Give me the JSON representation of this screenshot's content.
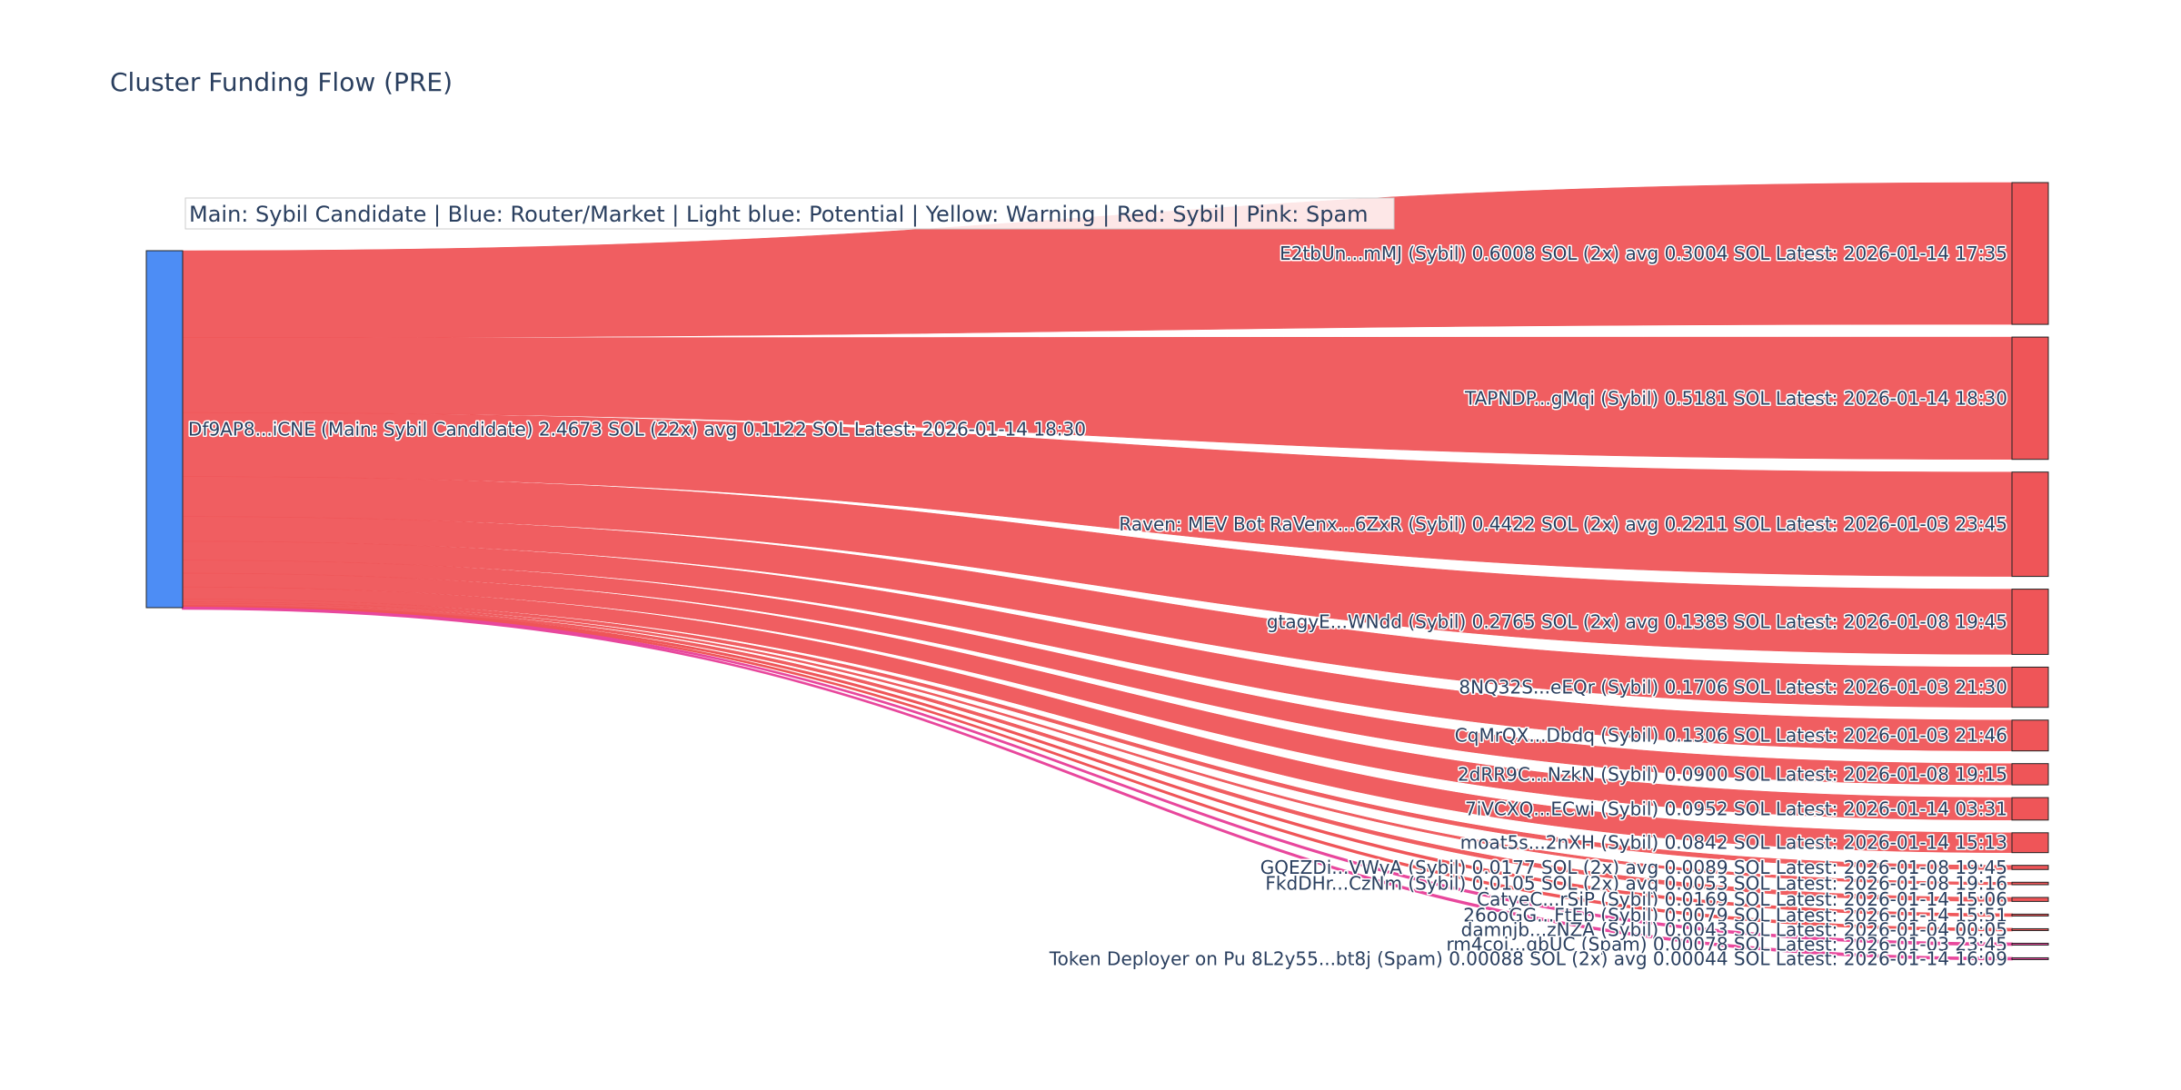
{
  "chart_data": {
    "type": "sankey",
    "title": "Cluster Funding Flow (PRE)",
    "legend_note": "Main: Sybil Candidate  |  Blue: Router/Market | Light blue: Potential | Yellow: Warning | Red: Sybil | Pink: Spam",
    "colors": {
      "main": "#4d8df5",
      "sybil": "#ef5558",
      "spam": "#e8479c",
      "node_outline": "#222222",
      "text": "#2a3f5f"
    },
    "source": {
      "label": "Df9AP8...iCNE (Main: Sybil Candidate) 2.4673 SOL (22x) avg 0.1122 SOL Latest: 2026-01-14 18:30",
      "total_sol": 2.4673,
      "count": 22
    },
    "targets": [
      {
        "label": "E2tbUn...mMJ (Sybil) 0.6008 SOL (2x) avg 0.3004 SOL Latest: 2026-01-14 17:35",
        "value": 0.6008,
        "category": "sybil"
      },
      {
        "label": "TAPNDP...gMqi (Sybil) 0.5181 SOL Latest: 2026-01-14 18:30",
        "value": 0.5181,
        "category": "sybil"
      },
      {
        "label": "Raven: MEV Bot RaVenx...6ZxR (Sybil) 0.4422 SOL (2x) avg 0.2211 SOL Latest: 2026-01-03 23:45",
        "value": 0.4422,
        "category": "sybil"
      },
      {
        "label": "gtagyE...WNdd (Sybil) 0.2765 SOL (2x) avg 0.1383 SOL Latest: 2026-01-08 19:45",
        "value": 0.2765,
        "category": "sybil"
      },
      {
        "label": "8NQ32S...eEQr (Sybil) 0.1706 SOL Latest: 2026-01-03 21:30",
        "value": 0.1706,
        "category": "sybil"
      },
      {
        "label": "CqMrQX...Dbdq (Sybil) 0.1306 SOL Latest: 2026-01-03 21:46",
        "value": 0.1306,
        "category": "sybil"
      },
      {
        "label": "2dRR9C...NzkN (Sybil) 0.0900 SOL Latest: 2026-01-08 19:15",
        "value": 0.09,
        "category": "sybil"
      },
      {
        "label": "7iVCXQ...ECwi (Sybil) 0.0952 SOL Latest: 2026-01-14 03:31",
        "value": 0.0952,
        "category": "sybil"
      },
      {
        "label": "moat5s...2nXH (Sybil) 0.0842 SOL Latest: 2026-01-14 15:13",
        "value": 0.0842,
        "category": "sybil"
      },
      {
        "label": "GQEZDi...VWyA (Sybil) 0.0177 SOL (2x) avg 0.0089 SOL Latest: 2026-01-08 19:45",
        "value": 0.0177,
        "category": "sybil"
      },
      {
        "label": "FkdDHr...CzNm (Sybil) 0.0105 SOL (2x) avg 0.0053 SOL Latest: 2026-01-08 19:16",
        "value": 0.0105,
        "category": "sybil"
      },
      {
        "label": "CatyeC...rSiP (Sybil) 0.0169 SOL Latest: 2026-01-14 15:06",
        "value": 0.0169,
        "category": "sybil"
      },
      {
        "label": "26ooGG...FtEb (Sybil) 0.0079 SOL Latest: 2026-01-14 15:51",
        "value": 0.0079,
        "category": "sybil"
      },
      {
        "label": "damnjb...zNZA (Sybil) 0.0043 SOL Latest: 2026-01-04 00:05",
        "value": 0.0043,
        "category": "sybil"
      },
      {
        "label": "rm4coj...qbUC (Spam) 0.00078 SOL Latest: 2026-01-03 23:45",
        "value": 0.00078,
        "category": "spam"
      },
      {
        "label": "Token Deployer on Pu 8L2y55...bt8j (Spam) 0.00088 SOL (2x) avg 0.00044 SOL Latest: 2026-01-14 16:09",
        "value": 0.00088,
        "category": "spam"
      }
    ]
  }
}
